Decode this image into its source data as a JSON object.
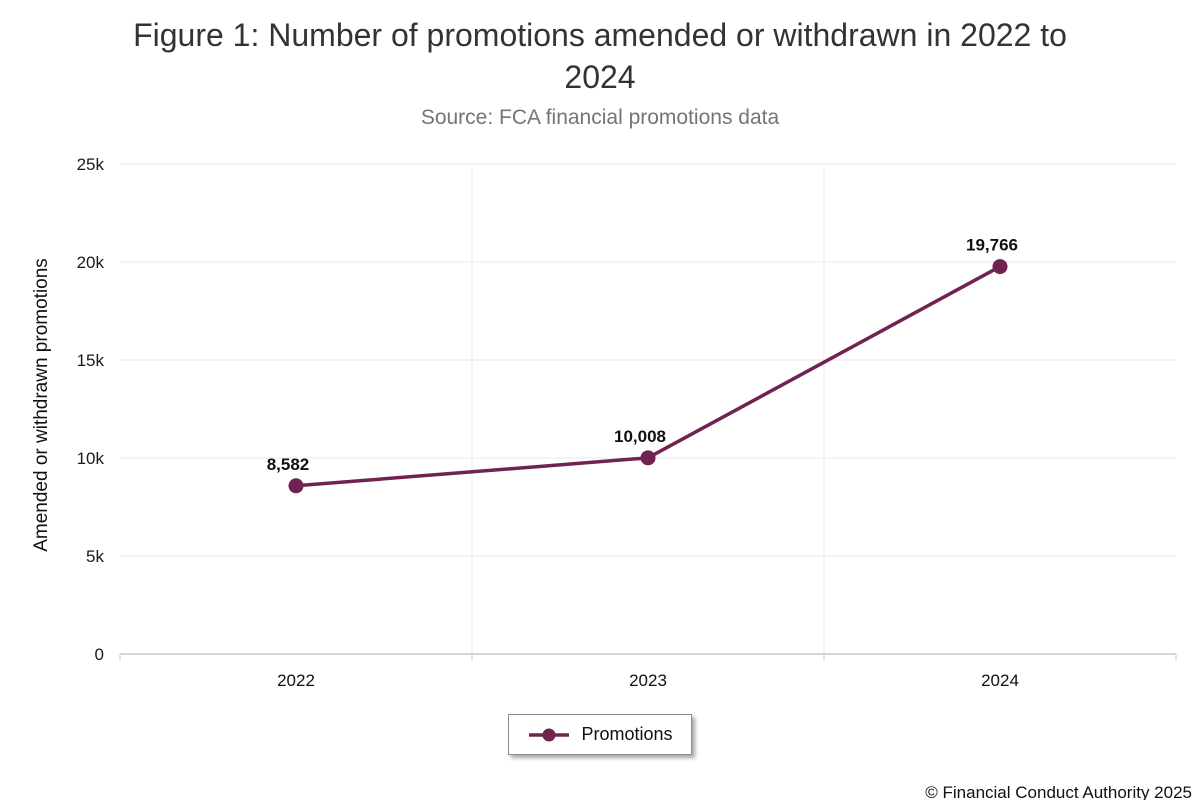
{
  "chart_data": {
    "type": "line",
    "title": "Figure 1: Number of promotions amended or withdrawn in 2022 to 2024",
    "subtitle": "Source: FCA financial promotions data",
    "categories": [
      "2022",
      "2023",
      "2024"
    ],
    "series": [
      {
        "name": "Promotions",
        "values": [
          8582,
          10008,
          19766
        ],
        "value_labels": [
          "8,582",
          "10,008",
          "19,766"
        ],
        "color": "#6F2350"
      }
    ],
    "xlabel": "",
    "ylabel": "Amended or withdrawn promotions",
    "ylim": [
      0,
      25000
    ],
    "yticks": {
      "values": [
        0,
        5000,
        10000,
        15000,
        20000,
        25000
      ],
      "labels": [
        "0",
        "5k",
        "10k",
        "15k",
        "20k",
        "25k"
      ]
    },
    "grid": true,
    "legend_position": "bottom"
  },
  "footer": {
    "copyright": "© Financial Conduct Authority 2025"
  }
}
